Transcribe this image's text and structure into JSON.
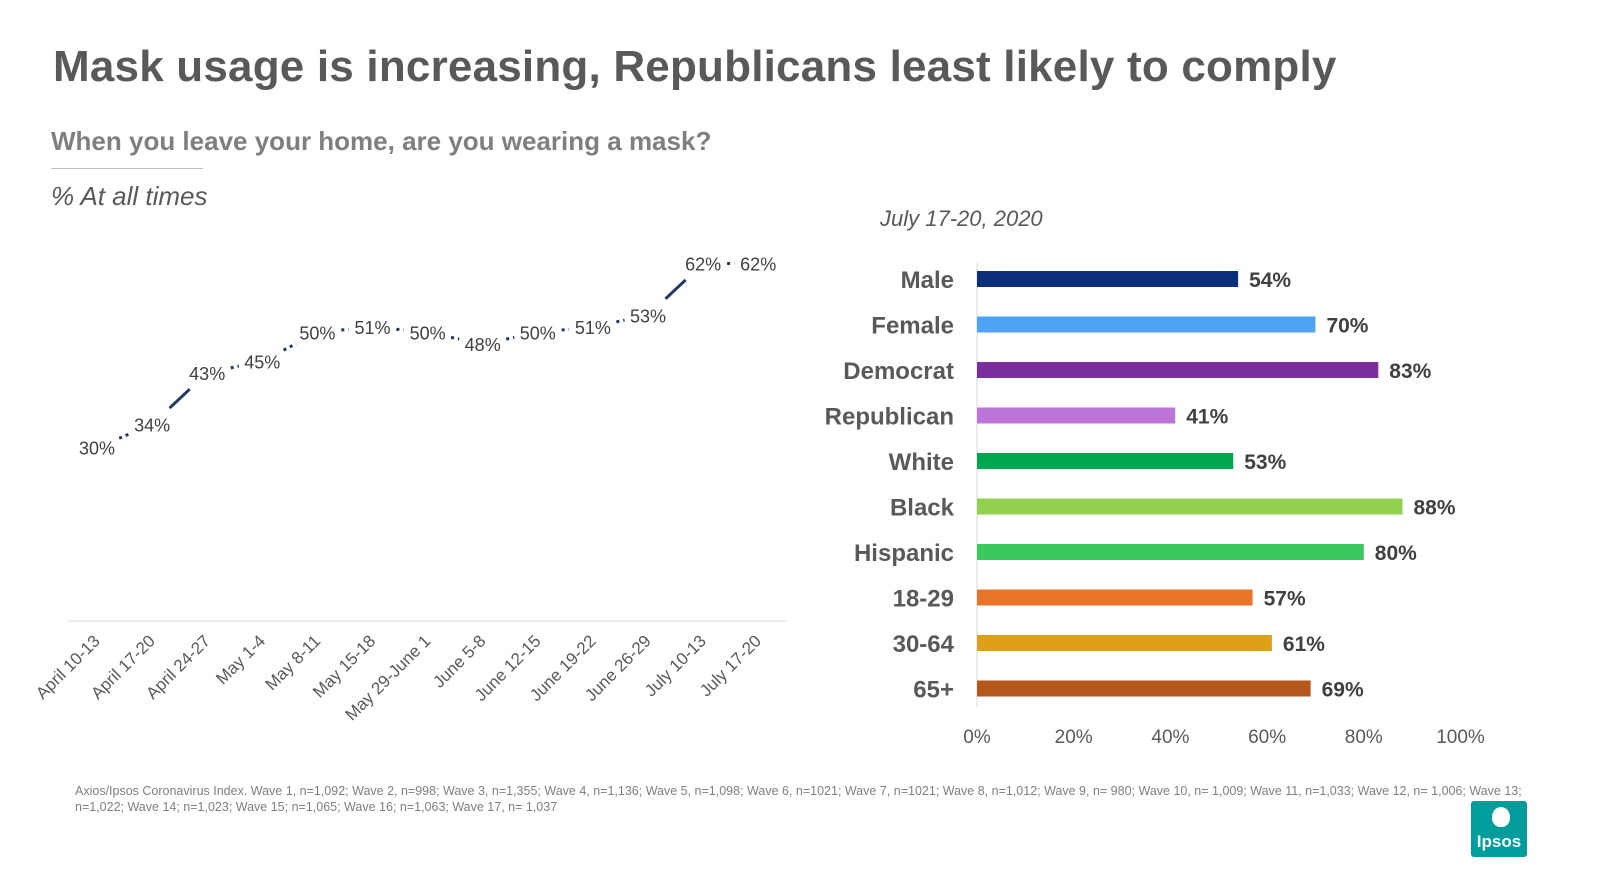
{
  "header": {
    "title": "Mask usage is increasing, Republicans least likely to comply",
    "subtitle": "When you leave your home, are you wearing a mask?",
    "measure": "% At all times"
  },
  "chart_data": [
    {
      "type": "line",
      "title": "",
      "categories": [
        "April 10-13",
        "April 17-20",
        "April 24-27",
        "May 1-4",
        "May 8-11",
        "May 15-18",
        "May 29-June 1",
        "June 5-8",
        "June 12-15",
        "June 19-22",
        "June 26-29",
        "July 10-13",
        "July 17-20"
      ],
      "series": [
        {
          "name": "% At all times",
          "values": [
            30,
            34,
            43,
            45,
            50,
            51,
            50,
            48,
            50,
            51,
            53,
            62,
            62
          ],
          "labels": [
            "30%",
            "34%",
            "43%",
            "45%",
            "50%",
            "51%",
            "50%",
            "48%",
            "50%",
            "51%",
            "53%",
            "62%",
            "62%"
          ]
        }
      ],
      "segment_styles": [
        "dashed",
        "solid",
        "dashed",
        "dashed",
        "dashed",
        "dashed",
        "dashed",
        "dashed",
        "dashed",
        "dashed",
        "solid",
        "dashed"
      ],
      "ylim": [
        0,
        80
      ],
      "line_color": "#1f3864",
      "xlabel": "",
      "ylabel": ""
    },
    {
      "type": "bar",
      "orientation": "horizontal",
      "title": "July 17-20, 2020",
      "categories": [
        "Male",
        "Female",
        "Democrat",
        "Republican",
        "White",
        "Black",
        "Hispanic",
        "18-29",
        "30-64",
        "65+"
      ],
      "values": [
        54,
        70,
        83,
        41,
        53,
        88,
        80,
        57,
        61,
        69
      ],
      "labels": [
        "54%",
        "70%",
        "83%",
        "41%",
        "53%",
        "88%",
        "80%",
        "57%",
        "61%",
        "69%"
      ],
      "colors": [
        "#0d2f7a",
        "#4ea3f5",
        "#7b2f9c",
        "#bd74d8",
        "#00a54f",
        "#92d050",
        "#3ac95c",
        "#e97627",
        "#dea017",
        "#b5561b"
      ],
      "xlim": [
        0,
        100
      ],
      "xticks": [
        "0%",
        "20%",
        "40%",
        "60%",
        "80%",
        "100%"
      ]
    }
  ],
  "footnote": "Axios/Ipsos Coronavirus Index. Wave 1, n=1,092; Wave 2, n=998; Wave 3, n=1,355; Wave 4, n=1,136; Wave 5, n=1,098; Wave 6, n=1021; Wave 7, n=1021; Wave 8, n=1,012; Wave 9, n= 980; Wave 10, n= 1,009; Wave 11, n=1,033; Wave 12, n= 1,006; Wave 13; n=1,022; Wave 14; n=1,023; Wave 15; n=1,065; Wave 16; n=1,063; Wave 17, n= 1,037",
  "logo": {
    "text": "Ipsos",
    "color": "#009d9c"
  }
}
